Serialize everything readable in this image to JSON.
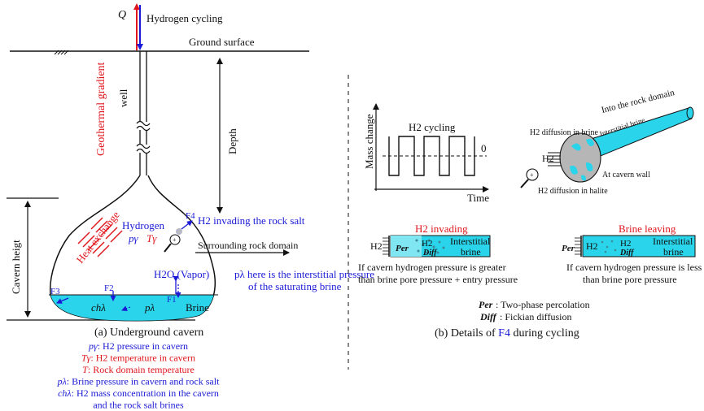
{
  "colors": {
    "red": "#e0141b",
    "blue": "#1a1ad6",
    "brine": "#2ad4ea",
    "black": "#111111",
    "grey": "#bdbdbd"
  },
  "left": {
    "q": "Q",
    "hydrogen_cycling": "Hydrogen cycling",
    "ground_surface": "Ground surface",
    "well": "well",
    "geothermal_gradient": "Geothermal gradient",
    "depth": "Depth",
    "cavern_height": "Cavern heigt",
    "heat_exchange": "Heat exchange",
    "hydrogen": "Hydrogen",
    "p_gamma": "pγ",
    "t_gamma": "Tγ",
    "f4": "F4",
    "h2_invading": "H2 invading the rock salt",
    "surrounding": "Surrounding rock domain",
    "h2o_vapor": "H2O (Vapor)",
    "p_lambda_note_1": "pλ here is the interstitial pressure",
    "p_lambda_note_2": "of the saturating brine",
    "f3": "F3",
    "f2": "F2",
    "f1": "F1",
    "c_hl": "chλ",
    "p_lambda": "pλ",
    "brine": "Brine",
    "caption": "(a) Underground cavern",
    "legend": [
      {
        "sym": "pγ",
        "text": ": H2 pressure in cavern",
        "color": "blue"
      },
      {
        "sym": "Tγ",
        "text": ": H2 temperature in cavern",
        "color": "red"
      },
      {
        "sym": "T",
        "text": ": Rock domain temperature",
        "color": "red"
      },
      {
        "sym": "pλ",
        "text": ": Brine pressure in cavern and rock salt",
        "color": "blue"
      },
      {
        "sym": "chλ",
        "text": ": H2 mass concentration in the cavern",
        "color": "blue"
      },
      {
        "sym": "",
        "text": "and the rock salt brines",
        "color": "blue"
      }
    ]
  },
  "right": {
    "mass_change": "Mass change",
    "h2_cycling": "H2 cycling",
    "zero": "0",
    "time": "Time",
    "h2_diff_brine": "H2 diffusion in brine",
    "into_rock": "Into the rock domain",
    "interstitial_brine_small": "Interstitial brine",
    "h2_label": "H2",
    "at_cavern_wall": "At cavern wall",
    "h2_diff_halite": "H2 diffusion in halite",
    "invading_title": "H2 invading",
    "per": "Per",
    "h2_in_tube": "H2",
    "diff": "Diff",
    "interstitial": "Interstitial",
    "brine_word": "brine",
    "invading_note_1": "If cavern hydrogen pressure is greater",
    "invading_note_2": "than brine pore pressure + entry pressure",
    "leaving_title": "Brine leaving",
    "leaving_note_1": "If cavern hydrogen pressure is less",
    "leaving_note_2": "than brine pore pressure",
    "per_def_sym": "Per",
    "per_def": ": Two-phase percolation",
    "diff_def_sym": "Diff",
    "diff_def": ": Fickian diffusion",
    "caption_prefix": "(b) Details of ",
    "caption_f4": "F4",
    "caption_suffix": " during cycling"
  }
}
